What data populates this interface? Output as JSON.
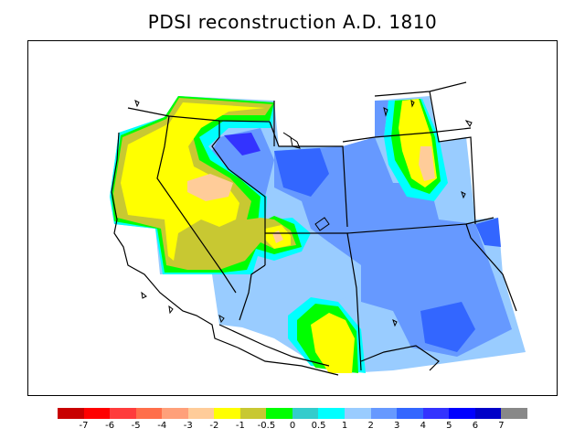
{
  "title": "PDSI reconstruction A.D. 1810",
  "legend": {
    "colors": [
      "#c80000",
      "#ff0000",
      "#ff3c3c",
      "#ff6e4a",
      "#ffa07a",
      "#ffcc99",
      "#ffff00",
      "#c8c832",
      "#00ff00",
      "#33cccc",
      "#00ffff",
      "#99ccff",
      "#6699ff",
      "#3366ff",
      "#3333ff",
      "#0000ff",
      "#0000c8",
      "#888888"
    ],
    "labels": [
      "-7",
      "-6",
      "-5",
      "-4",
      "-3",
      "-2",
      "-1",
      "-0.5",
      "0",
      "0.5",
      "1",
      "2",
      "3",
      "4",
      "5",
      "6",
      "7"
    ]
  },
  "palette": {
    "dry_strong": "#ffcc99",
    "dry": "#ffff00",
    "near_normal_dry": "#c8c832",
    "neutral": "#00ff00",
    "near_normal_wet": "#33cccc",
    "wet_light": "#00ffff",
    "wet": "#99ccff",
    "wetter": "#6699ff",
    "very_wet": "#3366ff",
    "extreme_wet": "#3333ff"
  }
}
